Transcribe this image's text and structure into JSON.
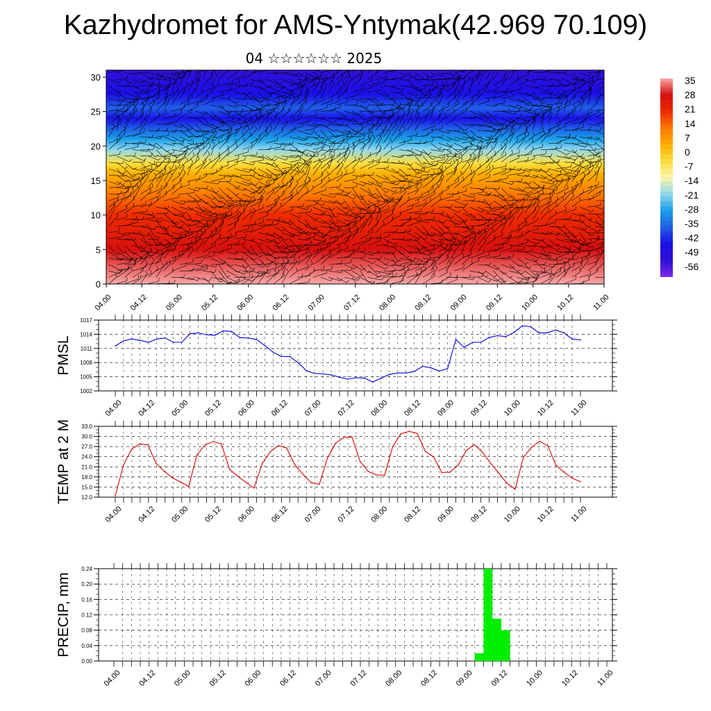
{
  "title": "Kazhydromet for AMS-Yntymak(42.969 70.109)",
  "subtitle": "04 ☆☆☆☆☆☆ 2025",
  "time_labels": [
    "04.00",
    "04.12",
    "05.00",
    "05.12",
    "06.00",
    "06.12",
    "07.00",
    "07.12",
    "08.00",
    "08.12",
    "09.00",
    "09.12",
    "10.00",
    "10.12",
    "11.00"
  ],
  "colors": {
    "pmsl_line": "#0000dd",
    "temp_line": "#dd0000",
    "precip_bar": "#00ee00",
    "wind_barb": "#000000"
  },
  "chart_data": [
    {
      "type": "heatmap",
      "description_variable": "temperature with wind barbs vs height",
      "x_tick_labels": [
        "04.00",
        "04.12",
        "05.00",
        "05.12",
        "06.00",
        "06.12",
        "07.00",
        "07.12",
        "08.00",
        "08.12",
        "09.00",
        "09.12",
        "10.00",
        "10.12",
        "11.00"
      ],
      "y_ticks": [
        0,
        5,
        10,
        15,
        20,
        25,
        30
      ],
      "ylim": [
        0,
        31
      ],
      "color_scale_labels": [
        "35",
        "28",
        "21",
        "14",
        "7",
        "0",
        "-7",
        "-14",
        "-21",
        "-28",
        "-35",
        "-42",
        "-49",
        "-56"
      ],
      "color_stops": [
        {
          "value": 35,
          "color": "#f7a8a8"
        },
        {
          "value": 28,
          "color": "#d81010"
        },
        {
          "value": 14,
          "color": "#ee2b00"
        },
        {
          "value": 7,
          "color": "#ff7a00"
        },
        {
          "value": 0,
          "color": "#ffb000"
        },
        {
          "value": -7,
          "color": "#ffe040"
        },
        {
          "value": -14,
          "color": "#fff7b0"
        },
        {
          "value": -21,
          "color": "#8fd8f0"
        },
        {
          "value": -28,
          "color": "#1aa0e8"
        },
        {
          "value": -35,
          "color": "#2060e8"
        },
        {
          "value": -42,
          "color": "#1a10e8"
        },
        {
          "value": -49,
          "color": "#3010d8"
        },
        {
          "value": -56,
          "color": "#7a28e8"
        }
      ],
      "temperature_profile": [
        {
          "height": 0,
          "temp": 28
        },
        {
          "height": 5,
          "temp": 21
        },
        {
          "height": 10,
          "temp": 7
        },
        {
          "height": 13,
          "temp": 2
        },
        {
          "height": 16,
          "temp": -7
        },
        {
          "height": 17.5,
          "temp": -14
        },
        {
          "height": 19.5,
          "temp": -28
        },
        {
          "height": 21,
          "temp": -35
        },
        {
          "height": 22.5,
          "temp": -42
        },
        {
          "height": 24,
          "temp": -49
        },
        {
          "height": 25.5,
          "temp": -42
        },
        {
          "height": 27.5,
          "temp": -49
        },
        {
          "height": 31,
          "temp": -56
        }
      ]
    },
    {
      "type": "line",
      "ylabel": "PMSL",
      "x_tick_labels": [
        "04.00",
        "04.12",
        "05.00",
        "05.12",
        "06.00",
        "06.12",
        "07.00",
        "07.12",
        "08.00",
        "08.12",
        "09.00",
        "09.12",
        "10.00",
        "10.12",
        "11.00"
      ],
      "y_tick_labels": [
        "1017",
        "1014",
        "1011",
        "1008",
        "1005",
        "1002"
      ],
      "ylim": [
        1002,
        1017
      ],
      "grid": true,
      "series": [
        {
          "values": [
            1011.5,
            1012.6,
            1013.0,
            1012.7,
            1012.3,
            1013.0,
            1013.2,
            1012.3,
            1012.3,
            1014.1,
            1014.3,
            1013.9,
            1013.8,
            1014.7,
            1014.6,
            1013.3,
            1013.2,
            1012.9,
            1011.6,
            1010.2,
            1009.3,
            1009.3,
            1008.0,
            1006.3,
            1005.7,
            1005.6,
            1005.4,
            1004.9,
            1004.5,
            1004.8,
            1004.7,
            1003.9,
            1004.7,
            1005.5,
            1005.8,
            1005.8,
            1006.1,
            1007.2,
            1006.9,
            1006.2,
            1006.7,
            1012.9,
            1011.2,
            1012.3,
            1012.3,
            1013.3,
            1013.7,
            1013.5,
            1014.4,
            1015.8,
            1015.6,
            1014.3,
            1014.3,
            1014.9,
            1014.3,
            1013.0,
            1012.8
          ]
        }
      ]
    },
    {
      "type": "line",
      "ylabel": "TEMP at 2 M",
      "x_tick_labels": [
        "04.00",
        "04.12",
        "05.00",
        "05.12",
        "06.00",
        "06.12",
        "07.00",
        "07.12",
        "08.00",
        "08.12",
        "09.00",
        "09.12",
        "10.00",
        "10.12",
        "11.00"
      ],
      "y_tick_labels": [
        "33.0",
        "30.0",
        "27.0",
        "24.0",
        "21.0",
        "18.0",
        "15.0",
        "12.0"
      ],
      "ylim": [
        12,
        33
      ],
      "grid": true,
      "series": [
        {
          "values": [
            12.4,
            21.5,
            26.2,
            27.8,
            27.5,
            22.0,
            19.7,
            17.7,
            16.5,
            15.2,
            24.4,
            27.5,
            28.5,
            27.8,
            20.3,
            18.2,
            16.4,
            14.7,
            22.0,
            25.5,
            27.3,
            26.6,
            21.6,
            18.8,
            16.3,
            15.8,
            23.6,
            28.0,
            29.7,
            29.8,
            22.6,
            19.6,
            18.6,
            18.5,
            27.0,
            30.8,
            31.5,
            30.9,
            25.5,
            24.0,
            19.3,
            19.4,
            21.4,
            25.8,
            27.6,
            25.3,
            22.0,
            19.1,
            16.1,
            14.4,
            23.8,
            26.8,
            28.6,
            27.2,
            21.5,
            19.4,
            17.6,
            16.6
          ]
        }
      ]
    },
    {
      "type": "bar",
      "ylabel": "PRECIP, mm",
      "x_tick_labels": [
        "04.00",
        "04.12",
        "05.00",
        "05.12",
        "06.00",
        "06.12",
        "07.00",
        "07.12",
        "08.00",
        "08.12",
        "09.00",
        "09.12",
        "10.00",
        "10.12",
        "11.00"
      ],
      "y_tick_labels": [
        "0.24",
        "0.20",
        "0.16",
        "0.12",
        "0.08",
        "0.04",
        "0.00"
      ],
      "ylim": [
        0,
        0.24
      ],
      "grid": true,
      "bars": [
        {
          "hour": 123,
          "value": 0.02
        },
        {
          "hour": 126,
          "value": 0.24
        },
        {
          "hour": 129,
          "value": 0.11
        },
        {
          "hour": 132,
          "value": 0.08
        }
      ],
      "bar_width_hours": 3
    }
  ]
}
